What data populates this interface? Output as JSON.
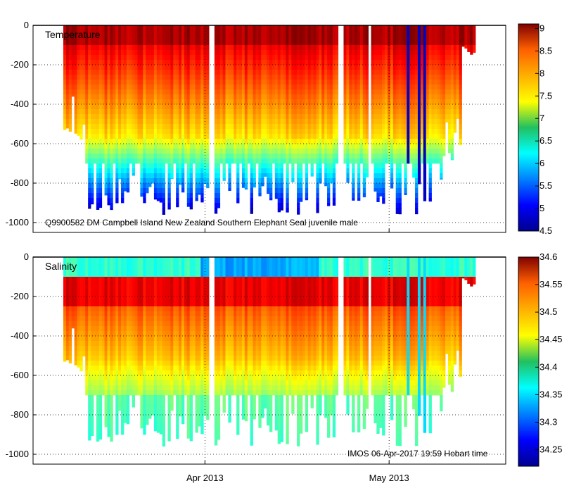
{
  "chart_data": [
    {
      "type": "heatmap",
      "title": "Temperature",
      "annotation": "Q9900582 DM Campbell Island New Zealand Southern Elephant Seal juvenile male",
      "ylabel": "",
      "ylim": [
        -1050,
        0
      ],
      "yticks": [
        0,
        -200,
        -400,
        -600,
        -800,
        -1000
      ],
      "ytick_labels": [
        "0",
        "-200",
        "-400",
        "-600",
        "-800",
        "-1000"
      ],
      "x_start_day": 0,
      "x_end_day": 77,
      "xtick_days": [
        28,
        58
      ],
      "colorbar": {
        "min": 4.5,
        "max": 9.1,
        "ticks": [
          9,
          8.5,
          8,
          7.5,
          7,
          6.5,
          6,
          5.5,
          5,
          4.5
        ],
        "tick_labels": [
          "9",
          "8.5",
          "8",
          "7.5",
          "7",
          "6.5",
          "6",
          "5.5",
          "5",
          "4.5"
        ]
      }
    },
    {
      "type": "heatmap",
      "title": "Salinity",
      "annotation": "IMOS 06-Apr-2017 19:59 Hobart time",
      "ylabel": "",
      "ylim": [
        -1050,
        0
      ],
      "yticks": [
        0,
        -200,
        -400,
        -600,
        -800,
        -1000
      ],
      "ytick_labels": [
        "0",
        "-200",
        "-400",
        "-600",
        "-800",
        "-1000"
      ],
      "x_start_day": 0,
      "x_end_day": 77,
      "xtick_days": [
        28,
        58
      ],
      "xtick_labels": [
        "Apr 2013",
        "May 2013"
      ],
      "colorbar": {
        "min": 34.22,
        "max": 34.6,
        "ticks": [
          34.6,
          34.55,
          34.5,
          34.45,
          34.4,
          34.35,
          34.3,
          34.25
        ],
        "tick_labels": [
          "34.6",
          "34.55",
          "34.5",
          "34.45",
          "34.4",
          "34.35",
          "34.3",
          "34.25"
        ]
      }
    }
  ],
  "colors": {
    "frame": "#000000",
    "grid": "#000000",
    "background": "#ffffff"
  }
}
